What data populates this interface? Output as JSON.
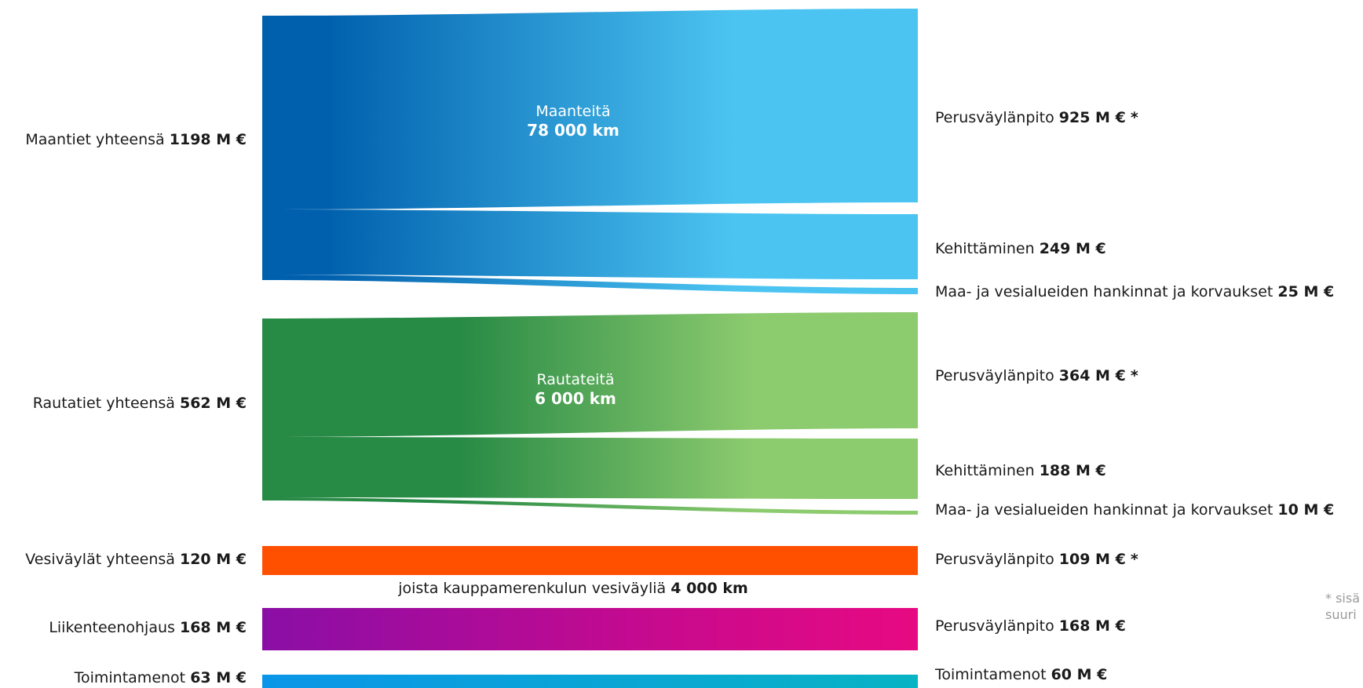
{
  "sources": [
    {
      "label": "Maantiet yhteensä",
      "value": "1198 M €"
    },
    {
      "label": "Rautatiet yhteensä",
      "value": "562 M €"
    },
    {
      "label": "Vesiväylät yhteensä",
      "value": "120 M €"
    },
    {
      "label": "Liikenteenohjaus",
      "value": "168 M €"
    },
    {
      "label": "Toimintamenot",
      "value": "63 M €"
    }
  ],
  "targets": [
    {
      "label": "Perusväylänpito",
      "value": "925 M €",
      "suffix": "*"
    },
    {
      "label": "Kehittäminen",
      "value": "249 M €",
      "suffix": ""
    },
    {
      "label": "Maa- ja vesialueiden hankinnat ja korvaukset",
      "value": "25 M €",
      "suffix": ""
    },
    {
      "label": "Perusväylänpito",
      "value": "364 M €",
      "suffix": "*"
    },
    {
      "label": "Kehittäminen",
      "value": "188 M €",
      "suffix": ""
    },
    {
      "label": "Maa- ja vesialueiden hankinnat ja korvaukset",
      "value": "10 M €",
      "suffix": ""
    },
    {
      "label": "Perusväylänpito",
      "value": "109 M €",
      "suffix": "*"
    },
    {
      "label": "Perusväylänpito",
      "value": "168 M €",
      "suffix": ""
    },
    {
      "label": "Toimintamenot",
      "value": "60 M €",
      "suffix": ""
    }
  ],
  "centers": [
    {
      "name": "Maanteitä",
      "length": "78 000 km"
    },
    {
      "name": "Rautateitä",
      "length": "6 000 km"
    }
  ],
  "waterway_note": {
    "text": "joista kauppamerenkulun vesiväyliä",
    "length": "4 000 km"
  },
  "footnote": {
    "line1": "* sisä",
    "line2": "suuri"
  },
  "colors": {
    "road_dark": "#0060ad",
    "road_light": "#4cc4f1",
    "rail_dark": "#278a45",
    "rail_light": "#8dcb6f",
    "water": "#ff5000",
    "traffic_start": "#8a0ea6",
    "traffic_end": "#e70a82",
    "ops_start": "#0a96e8",
    "ops_end": "#08b3c4"
  },
  "chart_data": {
    "type": "sankey",
    "flows": [
      {
        "from": "Maantiet yhteensä",
        "to": "Perusväylänpito",
        "value": 925
      },
      {
        "from": "Maantiet yhteensä",
        "to": "Kehittäminen",
        "value": 249
      },
      {
        "from": "Maantiet yhteensä",
        "to": "Maa- ja vesialueiden hankinnat ja korvaukset",
        "value": 25
      },
      {
        "from": "Rautatiet yhteensä",
        "to": "Perusväylänpito",
        "value": 364
      },
      {
        "from": "Rautatiet yhteensä",
        "to": "Kehittäminen",
        "value": 188
      },
      {
        "from": "Rautatiet yhteensä",
        "to": "Maa- ja vesialueiden hankinnat ja korvaukset",
        "value": 10
      },
      {
        "from": "Vesiväylät yhteensä",
        "to": "Perusväylänpito",
        "value": 109
      },
      {
        "from": "Liikenteenohjaus",
        "to": "Perusväylänpito",
        "value": 168
      },
      {
        "from": "Toimintamenot",
        "to": "Toimintamenot",
        "value": 60
      }
    ]
  }
}
